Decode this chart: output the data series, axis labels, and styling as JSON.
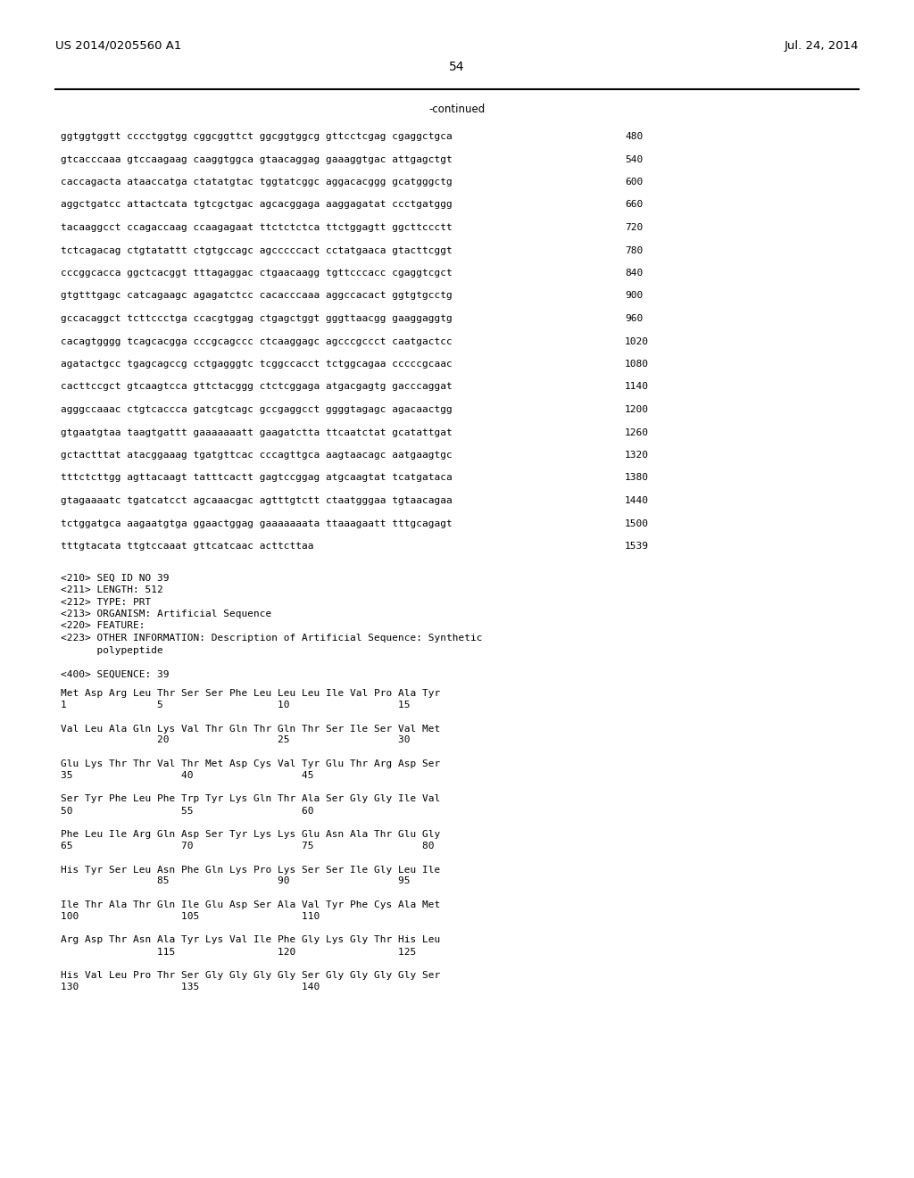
{
  "header_left": "US 2014/0205560 A1",
  "header_right": "Jul. 24, 2014",
  "page_number": "54",
  "continued_text": "-continued",
  "background_color": "#ffffff",
  "text_color": "#000000",
  "sequence_lines": [
    [
      "ggtggtggtt cccctggtgg cggcggttct ggcggtggcg gttcctcgag cgaggctgca",
      "480"
    ],
    [
      "gtcacccaaa gtccaagaag caaggtggca gtaacaggag gaaaggtgac attgagctgt",
      "540"
    ],
    [
      "caccagacta ataaccatga ctatatgtac tggtatcggc aggacacggg gcatgggctg",
      "600"
    ],
    [
      "aggctgatcc attactcata tgtcgctgac agcacggaga aaggagatat ccctgatggg",
      "660"
    ],
    [
      "tacaaggcct ccagaccaag ccaagagaat ttctctctca ttctggagtt ggcttccctt",
      "720"
    ],
    [
      "tctcagacag ctgtatattt ctgtgccagc agcccccact cctatgaaca gtacttcggt",
      "780"
    ],
    [
      "cccggcacca ggctcacggt tttagaggac ctgaacaagg tgttcccacc cgaggtcgct",
      "840"
    ],
    [
      "gtgtttgagc catcagaagc agagatctcc cacacccaaa aggccacact ggtgtgcctg",
      "900"
    ],
    [
      "gccacaggct tcttccctga ccacgtggag ctgagctggt gggttaacgg gaaggaggtg",
      "960"
    ],
    [
      "cacagtgggg tcagcacgga cccgcagccc ctcaaggagc agcccgccct caatgactcc",
      "1020"
    ],
    [
      "agatactgcc tgagcagccg cctgagggtc tcggccacct tctggcagaa cccccgcaac",
      "1080"
    ],
    [
      "cacttccgct gtcaagtcca gttctacggg ctctcggaga atgacgagtg gacccaggat",
      "1140"
    ],
    [
      "agggccaaac ctgtcaccca gatcgtcagc gccgaggcct ggggtagagc agacaactgg",
      "1200"
    ],
    [
      "gtgaatgtaa taagtgattt gaaaaaaatt gaagatctta ttcaatctat gcatattgat",
      "1260"
    ],
    [
      "gctactttat atacggaaag tgatgttcac cccagttgca aagtaacagc aatgaagtgc",
      "1320"
    ],
    [
      "tttctcttgg agttacaagt tatttcactt gagtccggag atgcaagtat tcatgataca",
      "1380"
    ],
    [
      "gtagaaaatc tgatcatcct agcaaacgac agtttgtctt ctaatgggaa tgtaacagaa",
      "1440"
    ],
    [
      "tctggatgca aagaatgtga ggaactggag gaaaaaaata ttaaagaatt tttgcagagt",
      "1500"
    ],
    [
      "tttgtacata ttgtccaaat gttcatcaac acttcttaa",
      "1539"
    ]
  ],
  "metadata_lines": [
    "<210> SEQ ID NO 39",
    "<211> LENGTH: 512",
    "<212> TYPE: PRT",
    "<213> ORGANISM: Artificial Sequence",
    "<220> FEATURE:",
    "<223> OTHER INFORMATION: Description of Artificial Sequence: Synthetic",
    "      polypeptide",
    "",
    "<400> SEQUENCE: 39"
  ],
  "protein_blocks": [
    {
      "seq_line": "Met Asp Arg Leu Thr Ser Ser Phe Leu Leu Leu Ile Val Pro Ala Tyr",
      "num_line": "1               5                   10                  15"
    },
    {
      "seq_line": "Val Leu Ala Gln Lys Val Thr Gln Thr Gln Thr Ser Ile Ser Val Met",
      "num_line": "                20                  25                  30"
    },
    {
      "seq_line": "Glu Lys Thr Thr Val Thr Met Asp Cys Val Tyr Glu Thr Arg Asp Ser",
      "num_line": "35                  40                  45"
    },
    {
      "seq_line": "Ser Tyr Phe Leu Phe Trp Tyr Lys Gln Thr Ala Ser Gly Gly Ile Val",
      "num_line": "50                  55                  60"
    },
    {
      "seq_line": "Phe Leu Ile Arg Gln Asp Ser Tyr Lys Lys Glu Asn Ala Thr Glu Gly",
      "num_line": "65                  70                  75                  80"
    },
    {
      "seq_line": "His Tyr Ser Leu Asn Phe Gln Lys Pro Lys Ser Ser Ile Gly Leu Ile",
      "num_line": "                85                  90                  95"
    },
    {
      "seq_line": "Ile Thr Ala Thr Gln Ile Glu Asp Ser Ala Val Tyr Phe Cys Ala Met",
      "num_line": "100                 105                 110"
    },
    {
      "seq_line": "Arg Asp Thr Asn Ala Tyr Lys Val Ile Phe Gly Lys Gly Thr His Leu",
      "num_line": "                115                 120                 125"
    },
    {
      "seq_line": "His Val Leu Pro Thr Ser Gly Gly Gly Gly Ser Gly Gly Gly Gly Ser",
      "num_line": "130                 135                 140"
    }
  ]
}
